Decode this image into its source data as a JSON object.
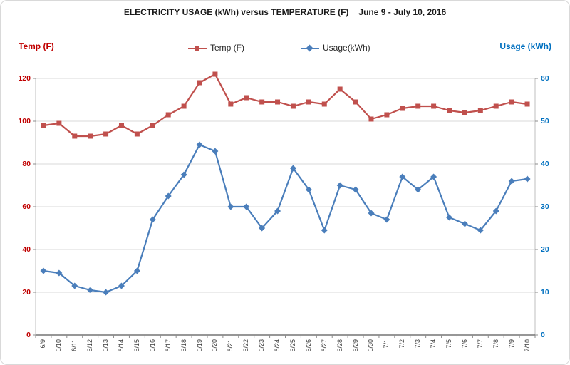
{
  "title": {
    "main": "ELECTRICITY USAGE (kWh) versus TEMPERATURE (F)",
    "dates": "June 9 - July 10, 2016"
  },
  "left_axis": {
    "title": "Temp (F)",
    "color": "#c00000",
    "min": 0,
    "max": 120,
    "ticks": [
      0,
      20,
      40,
      60,
      80,
      100,
      120
    ]
  },
  "right_axis": {
    "title": "Usage (kWh)",
    "color": "#0070c0",
    "min": 0,
    "max": 60,
    "ticks": [
      0,
      10,
      20,
      30,
      40,
      50,
      60
    ]
  },
  "legend": [
    {
      "label": "Temp (F)",
      "marker": "square",
      "color": "#c0504d"
    },
    {
      "label": "Usage(kWh)",
      "marker": "diamond",
      "color": "#4a7ebb"
    }
  ],
  "chart_data": {
    "type": "line",
    "title": "ELECTRICITY USAGE (kWh) versus TEMPERATURE (F)  June 9 - July 10, 2016",
    "categories": [
      "6/9",
      "6/10",
      "6/11",
      "6/12",
      "6/13",
      "6/14",
      "6/15",
      "6/16",
      "6/17",
      "6/18",
      "6/19",
      "6/20",
      "6/21",
      "6/22",
      "6/23",
      "6/24",
      "6/25",
      "6/26",
      "6/27",
      "6/28",
      "6/29",
      "6/30",
      "7/1",
      "7/2",
      "7/3",
      "7/4",
      "7/5",
      "7/6",
      "7/7",
      "7/8",
      "7/9",
      "7/10"
    ],
    "series": [
      {
        "name": "Temp (F)",
        "axis": "left",
        "color": "#c0504d",
        "marker": "square",
        "values": [
          98,
          99,
          93,
          93,
          94,
          98,
          94,
          98,
          103,
          107,
          118,
          122,
          108,
          111,
          109,
          109,
          107,
          109,
          108,
          115,
          109,
          101,
          103,
          106,
          107,
          107,
          105,
          104,
          105,
          107,
          109,
          108
        ]
      },
      {
        "name": "Usage(kWh)",
        "axis": "right",
        "color": "#4a7ebb",
        "marker": "diamond",
        "values": [
          15,
          14.5,
          11.5,
          10.5,
          10,
          11.5,
          15,
          27,
          32.5,
          37.5,
          44.5,
          43,
          30,
          30,
          25,
          29,
          39,
          34,
          24.5,
          35,
          34,
          28.5,
          27,
          37,
          34,
          37,
          27.5,
          26,
          24.5,
          29,
          36,
          36.5
        ]
      }
    ],
    "left_ylim": [
      0,
      120
    ],
    "right_ylim": [
      0,
      60
    ],
    "grid": true,
    "legend_position": "top"
  },
  "colors": {
    "grid": "#d9d9d9",
    "bottom_axis": "#595959",
    "side_axis": "#bfbfbf",
    "tick": "#8c8c8c",
    "x_label": "#3b3b3b"
  }
}
